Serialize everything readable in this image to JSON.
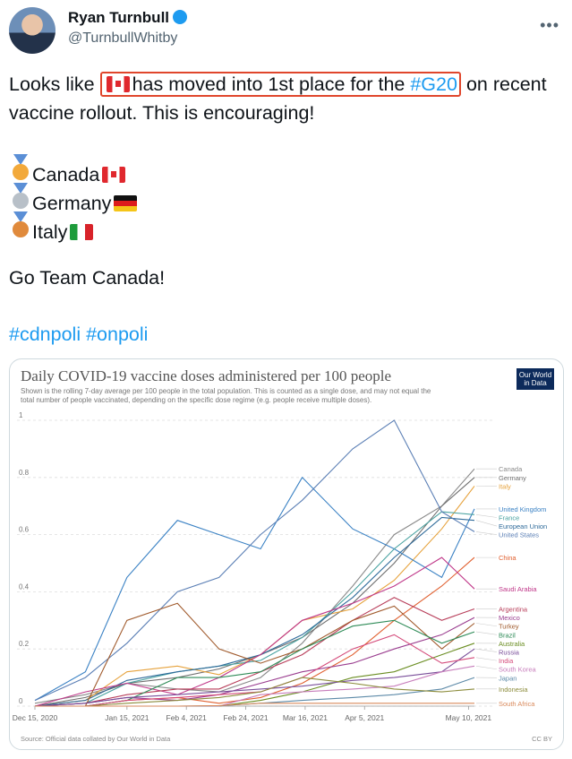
{
  "author": {
    "name": "Ryan Turnbull",
    "handle": "@TurnbullWhitby"
  },
  "tweet": {
    "intro": "Looks like",
    "highlight": "has moved into 1st place for the",
    "hashtag_g20": "#G20",
    "rest": "on recent vaccine rollout.  This is encouraging!",
    "ranking": [
      "Canada",
      "Germany",
      "Italy"
    ],
    "cheer": "Go Team Canada!",
    "hashtags": [
      "#cdnpoli",
      "#onpoli"
    ]
  },
  "chart_data": {
    "type": "line",
    "title": "Daily COVID-19 vaccine doses administered per 100 people",
    "subtitle": [
      "Shown is the rolling 7-day average per 100 people in the total population. This is counted as a single dose, and may not equal the",
      "total number of people vaccinated, depending on the specific dose regime (e.g. people receive multiple doses)."
    ],
    "logo": [
      "Our World",
      "in Data"
    ],
    "source": "Source: Official data collated by Our World in Data",
    "license": "CC BY",
    "x": [
      "2020-12-15",
      "2021-01-01",
      "2021-01-15",
      "2021-02-01",
      "2021-02-15",
      "2021-03-01",
      "2021-03-15",
      "2021-04-01",
      "2021-04-15",
      "2021-05-01",
      "2021-05-12"
    ],
    "xlim": [
      "2020-12-15",
      "2021-05-12"
    ],
    "xticks": [
      {
        "value": "2020-12-15",
        "label": "Dec 15, 2020"
      },
      {
        "value": "2021-01-15",
        "label": "Jan 15, 2021"
      },
      {
        "value": "2021-02-04",
        "label": "Feb 4, 2021"
      },
      {
        "value": "2021-02-24",
        "label": "Feb 24, 2021"
      },
      {
        "value": "2021-03-16",
        "label": "Mar 16, 2021"
      },
      {
        "value": "2021-04-05",
        "label": "Apr 5, 2021"
      },
      {
        "value": "2021-05-10",
        "label": "May 10, 2021"
      }
    ],
    "ylim": [
      0,
      1
    ],
    "yticks": [
      0,
      0.2,
      0.4,
      0.6,
      0.8,
      1
    ],
    "grid": true,
    "series": [
      {
        "name": "Canada",
        "color": "#8a8a8a",
        "values": [
          0.01,
          0.04,
          0.08,
          0.06,
          0.05,
          0.1,
          0.22,
          0.42,
          0.6,
          0.7,
          0.83
        ]
      },
      {
        "name": "Germany",
        "color": "#6f6f6f",
        "values": [
          0,
          0.03,
          0.08,
          0.1,
          0.13,
          0.18,
          0.24,
          0.36,
          0.5,
          0.7,
          0.8
        ]
      },
      {
        "name": "Italy",
        "color": "#e6a23c",
        "values": [
          0,
          0.02,
          0.12,
          0.14,
          0.11,
          0.18,
          0.3,
          0.34,
          0.44,
          0.62,
          0.77
        ]
      },
      {
        "name": "United Kingdom",
        "color": "#3b82c4",
        "values": [
          0.02,
          0.12,
          0.45,
          0.65,
          0.6,
          0.55,
          0.8,
          0.62,
          0.55,
          0.45,
          0.69
        ]
      },
      {
        "name": "France",
        "color": "#4aa3a1",
        "values": [
          0,
          0.01,
          0.08,
          0.12,
          0.14,
          0.16,
          0.24,
          0.4,
          0.55,
          0.68,
          0.67
        ]
      },
      {
        "name": "European Union",
        "color": "#2f6b9a",
        "values": [
          0,
          0.02,
          0.09,
          0.12,
          0.14,
          0.18,
          0.25,
          0.38,
          0.52,
          0.66,
          0.65
        ]
      },
      {
        "name": "United States",
        "color": "#5b7fb5",
        "values": [
          0.02,
          0.1,
          0.22,
          0.4,
          0.45,
          0.6,
          0.72,
          0.9,
          1.0,
          0.68,
          0.61
        ]
      },
      {
        "name": "China",
        "color": "#e06030",
        "values": [
          0,
          0,
          0.02,
          0.03,
          0.01,
          0.03,
          0.08,
          0.18,
          0.3,
          0.42,
          0.52
        ]
      },
      {
        "name": "Saudi Arabia",
        "color": "#c0398a",
        "values": [
          0,
          0.05,
          0.08,
          0.04,
          0.1,
          0.18,
          0.3,
          0.36,
          0.42,
          0.52,
          0.41
        ]
      },
      {
        "name": "Argentina",
        "color": "#b83e5a",
        "values": [
          0,
          0.01,
          0.04,
          0.06,
          0.06,
          0.12,
          0.18,
          0.3,
          0.38,
          0.3,
          0.34
        ]
      },
      {
        "name": "Mexico",
        "color": "#9a3d8f",
        "values": [
          0,
          0.01,
          0.03,
          0.02,
          0.04,
          0.08,
          0.12,
          0.15,
          0.2,
          0.25,
          0.31
        ]
      },
      {
        "name": "Turkey",
        "color": "#a05a2c",
        "values": [
          0,
          0,
          0.3,
          0.36,
          0.2,
          0.15,
          0.2,
          0.3,
          0.35,
          0.2,
          0.29
        ]
      },
      {
        "name": "Brazil",
        "color": "#2e8b57",
        "values": [
          0,
          0,
          0.02,
          0.1,
          0.1,
          0.12,
          0.2,
          0.28,
          0.3,
          0.22,
          0.26
        ]
      },
      {
        "name": "Australia",
        "color": "#6b8e23",
        "values": [
          0,
          0,
          0,
          0,
          0,
          0.02,
          0.05,
          0.1,
          0.12,
          0.18,
          0.22
        ]
      },
      {
        "name": "Russia",
        "color": "#7a4f9a",
        "values": [
          0,
          0.01,
          0.03,
          0.04,
          0.05,
          0.06,
          0.07,
          0.09,
          0.1,
          0.12,
          0.2
        ]
      },
      {
        "name": "India",
        "color": "#d44a7a",
        "values": [
          0,
          0,
          0.02,
          0.03,
          0.04,
          0.05,
          0.1,
          0.2,
          0.25,
          0.15,
          0.17
        ]
      },
      {
        "name": "South Korea",
        "color": "#c77dbb",
        "values": [
          0,
          0,
          0,
          0,
          0,
          0.04,
          0.05,
          0.06,
          0.07,
          0.12,
          0.14
        ]
      },
      {
        "name": "Japan",
        "color": "#5d8aa8",
        "values": [
          0,
          0,
          0,
          0,
          0.001,
          0.01,
          0.02,
          0.03,
          0.04,
          0.06,
          0.1
        ]
      },
      {
        "name": "Indonesia",
        "color": "#8c8c3c",
        "values": [
          0,
          0,
          0.01,
          0.02,
          0.03,
          0.05,
          0.1,
          0.08,
          0.06,
          0.05,
          0.06
        ]
      },
      {
        "name": "South Africa",
        "color": "#d98a5c",
        "values": [
          0,
          0,
          0,
          0,
          0.002,
          0.01,
          0.01,
          0.01,
          0.01,
          0.01,
          0.01
        ]
      }
    ]
  }
}
